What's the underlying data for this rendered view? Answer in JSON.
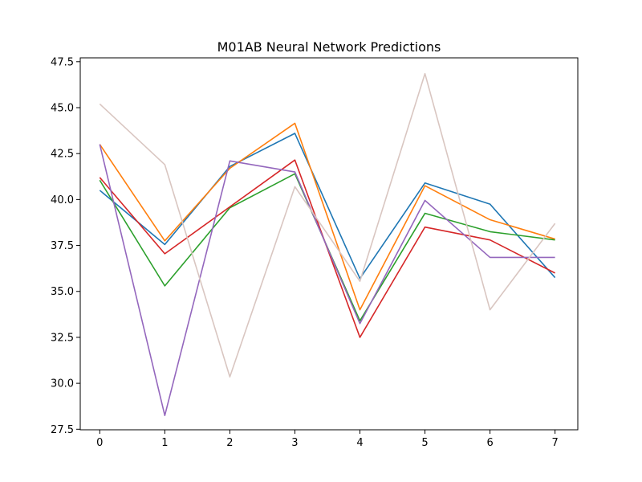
{
  "chart_data": {
    "type": "line",
    "title": "M01AB Neural Network Predictions",
    "xlabel": "",
    "ylabel": "",
    "x": [
      0,
      1,
      2,
      3,
      4,
      5,
      6,
      7
    ],
    "xlim": [
      -0.3,
      7.35
    ],
    "ylim": [
      27.47,
      47.71
    ],
    "x_ticks": [
      0,
      1,
      2,
      3,
      4,
      5,
      6,
      7
    ],
    "y_ticks": [
      27.5,
      30.0,
      32.5,
      35.0,
      37.5,
      40.0,
      42.5,
      45.0,
      47.5
    ],
    "grid": false,
    "legend": "none",
    "series": [
      {
        "color": "#1f77b4",
        "values": [
          40.5,
          37.55,
          41.8,
          43.6,
          35.7,
          40.9,
          39.75,
          35.75
        ]
      },
      {
        "color": "#ff7f0e",
        "values": [
          43.0,
          37.75,
          41.7,
          44.15,
          34.0,
          40.75,
          38.9,
          37.85
        ]
      },
      {
        "color": "#2ca02c",
        "values": [
          41.05,
          35.3,
          39.55,
          41.4,
          33.4,
          39.25,
          38.25,
          37.8
        ]
      },
      {
        "color": "#d62728",
        "values": [
          41.2,
          37.05,
          39.6,
          42.15,
          32.5,
          38.5,
          37.8,
          36.0
        ]
      },
      {
        "color": "#9467bd",
        "values": [
          43.0,
          28.25,
          42.1,
          41.5,
          33.25,
          39.95,
          36.85,
          36.85
        ]
      },
      {
        "color": "#d9c6c1",
        "values": [
          45.2,
          41.9,
          30.35,
          40.7,
          35.55,
          46.85,
          34.0,
          38.7
        ]
      }
    ]
  }
}
